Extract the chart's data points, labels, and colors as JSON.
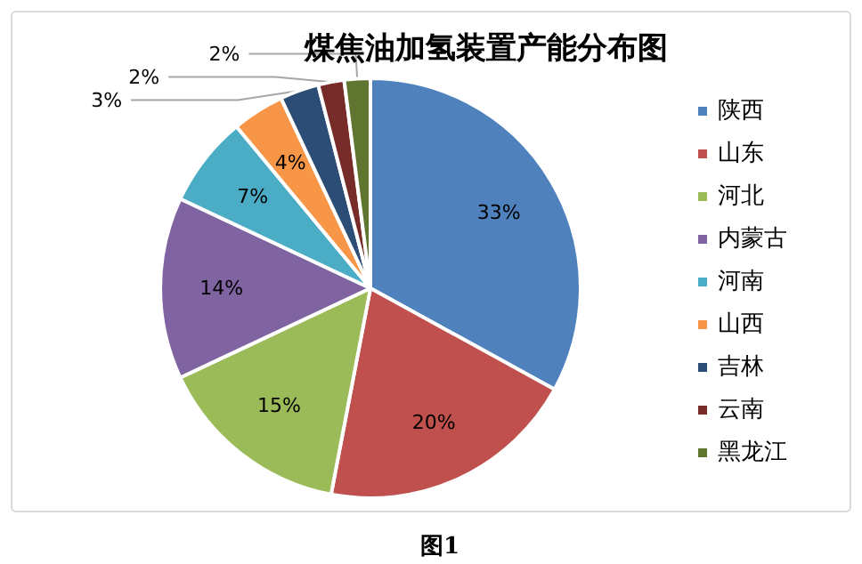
{
  "chart_data": {
    "type": "pie",
    "title": "煤焦油加氢装置产能分布图",
    "categories": [
      "陕西",
      "山东",
      "河北",
      "内蒙古",
      "河南",
      "山西",
      "吉林",
      "云南",
      "黑龙江"
    ],
    "values": [
      33,
      20,
      15,
      14,
      7,
      4,
      3,
      2,
      2
    ],
    "colors": [
      "#4f81bd",
      "#c0504d",
      "#9bbb59",
      "#8064a2",
      "#4bacc6",
      "#f79646",
      "#2c4d75",
      "#772c2a",
      "#5f7530"
    ],
    "value_labels": [
      "33%",
      "20%",
      "15%",
      "14%",
      "7%",
      "4%",
      "3%",
      "2%",
      "2%"
    ],
    "legend": "right",
    "annotations": [
      "图1"
    ]
  }
}
